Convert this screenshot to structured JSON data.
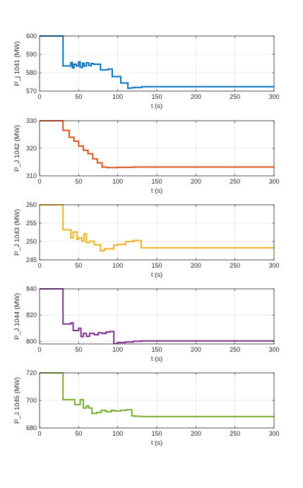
{
  "chart_data": [
    {
      "type": "line",
      "ylabel": "P_j 1041 (MW)",
      "xlabel": "t (s)",
      "xlim": [
        0,
        300
      ],
      "ylim": [
        570,
        600
      ],
      "xticks": [
        0,
        50,
        100,
        150,
        200,
        250,
        300
      ],
      "yticks": [
        570,
        580,
        590,
        600
      ],
      "color": "#0072BD",
      "grid": true,
      "series": [
        {
          "x": [
            0,
            30,
            30,
            40,
            40,
            42,
            42,
            44,
            44,
            47,
            47,
            50,
            50,
            52,
            52,
            55,
            55,
            57,
            57,
            60,
            60,
            63,
            63,
            66,
            66,
            69,
            69,
            73,
            73,
            78,
            78,
            88,
            88,
            93,
            93,
            104,
            104,
            113,
            113,
            117,
            117,
            121,
            121,
            131,
            131,
            300
          ],
          "y": [
            600,
            600,
            583.7,
            583.7,
            585.6,
            585.6,
            582.6,
            582.6,
            584.6,
            584.6,
            583.7,
            583.7,
            585.9,
            585.9,
            582.9,
            582.9,
            585.2,
            585.2,
            583.7,
            583.7,
            585.4,
            585.4,
            583.9,
            583.9,
            585,
            585,
            584.6,
            584.6,
            584.6,
            584.6,
            581.6,
            581.6,
            582,
            582,
            577.9,
            577.9,
            574.4,
            574.4,
            571.6,
            571.6,
            571.8,
            571.8,
            572,
            572,
            572.4,
            572.4
          ]
        }
      ]
    },
    {
      "type": "line",
      "ylabel": "P_J 1042 (MW)",
      "xlabel": "t (s)",
      "xlim": [
        0,
        300
      ],
      "ylim": [
        310,
        330
      ],
      "xticks": [
        0,
        50,
        100,
        150,
        200,
        250,
        300
      ],
      "yticks": [
        310,
        320,
        330
      ],
      "color": "#D95319",
      "grid": true,
      "series": [
        {
          "x": [
            0,
            30,
            30,
            38,
            38,
            44,
            44,
            50,
            50,
            56,
            56,
            62,
            62,
            68,
            68,
            74,
            74,
            80,
            80,
            86,
            86,
            100,
            100,
            120,
            120,
            300
          ],
          "y": [
            330,
            330,
            326.5,
            326.5,
            324,
            324,
            322.6,
            322.6,
            320.8,
            320.8,
            319.3,
            319.3,
            318,
            318,
            316.2,
            316.2,
            314.7,
            314.7,
            313.2,
            313.2,
            313,
            313,
            313.1,
            313.1,
            313.2,
            313.2
          ]
        }
      ]
    },
    {
      "type": "line",
      "ylabel": "P_J 1043 (MW)",
      "xlabel": "t (s)",
      "xlim": [
        0,
        300
      ],
      "ylim": [
        245,
        260
      ],
      "xticks": [
        0,
        50,
        100,
        150,
        200,
        250,
        300
      ],
      "yticks": [
        245,
        250,
        255,
        260
      ],
      "color": "#EDB120",
      "grid": true,
      "series": [
        {
          "x": [
            0,
            30,
            30,
            40,
            40,
            43,
            43,
            48,
            48,
            50,
            50,
            54,
            54,
            57,
            57,
            60,
            60,
            64,
            64,
            70,
            70,
            78,
            78,
            83,
            83,
            88,
            88,
            95,
            95,
            100,
            100,
            110,
            110,
            120,
            120,
            130,
            130,
            300
          ],
          "y": [
            260,
            260,
            253.2,
            253.2,
            251,
            251,
            252.6,
            252.6,
            250.6,
            250.6,
            251,
            251,
            250.1,
            250.1,
            252.1,
            252.1,
            249.7,
            249.7,
            250.1,
            250.1,
            249.1,
            249.1,
            247.5,
            247.5,
            248,
            248,
            248,
            248,
            249,
            249,
            249.2,
            249.2,
            250,
            250,
            250.3,
            250.3,
            248.3,
            248.3
          ]
        }
      ]
    },
    {
      "type": "line",
      "ylabel": "P_J 1044 (MW)",
      "xlabel": "t (s)",
      "xlim": [
        0,
        300
      ],
      "ylim": [
        798,
        840
      ],
      "xticks": [
        0,
        50,
        100,
        150,
        200,
        250,
        300
      ],
      "yticks": [
        800,
        820,
        840
      ],
      "color": "#7E2F8E",
      "grid": true,
      "series": [
        {
          "x": [
            0,
            30,
            30,
            40,
            40,
            43,
            43,
            50,
            50,
            53,
            53,
            56,
            56,
            60,
            60,
            64,
            64,
            70,
            70,
            75,
            75,
            80,
            80,
            85,
            85,
            90,
            90,
            95,
            95,
            100,
            100,
            110,
            110,
            120,
            120,
            130,
            130,
            300
          ],
          "y": [
            840,
            840,
            813.2,
            813.2,
            814,
            814,
            808.2,
            808.2,
            810,
            810,
            803.6,
            803.6,
            806,
            806,
            803.8,
            803.8,
            806,
            806,
            805,
            805,
            806.5,
            806.5,
            806,
            806,
            807,
            807,
            807.5,
            807.5,
            798.3,
            798.3,
            799,
            799,
            799.5,
            799.5,
            800,
            800,
            800.3,
            800.3
          ]
        }
      ]
    },
    {
      "type": "line",
      "ylabel": "P_J 1045 (MW)",
      "xlabel": "t (s)",
      "xlim": [
        0,
        300
      ],
      "ylim": [
        680,
        720
      ],
      "xticks": [
        0,
        50,
        100,
        150,
        200,
        250,
        300
      ],
      "yticks": [
        680,
        700,
        720
      ],
      "color": "#77AC30",
      "grid": true,
      "series": [
        {
          "x": [
            0,
            30,
            30,
            40,
            40,
            45,
            45,
            52,
            52,
            56,
            56,
            60,
            60,
            63,
            63,
            67,
            67,
            73,
            73,
            79,
            79,
            85,
            85,
            92,
            92,
            96,
            96,
            104,
            104,
            111,
            111,
            118,
            118,
            122,
            122,
            130,
            130,
            300
          ],
          "y": [
            720,
            720,
            700.6,
            700.6,
            700.6,
            700.6,
            697,
            697,
            700.6,
            700.6,
            694.5,
            694.5,
            696,
            696,
            694.5,
            694.5,
            690.5,
            690.5,
            691.3,
            691.3,
            692.8,
            692.8,
            691.8,
            691.8,
            692.8,
            692.8,
            692.3,
            692.3,
            692.8,
            692.8,
            693.3,
            693.3,
            688.8,
            688.8,
            688.5,
            688.5,
            688.3,
            688.3
          ]
        }
      ]
    }
  ]
}
